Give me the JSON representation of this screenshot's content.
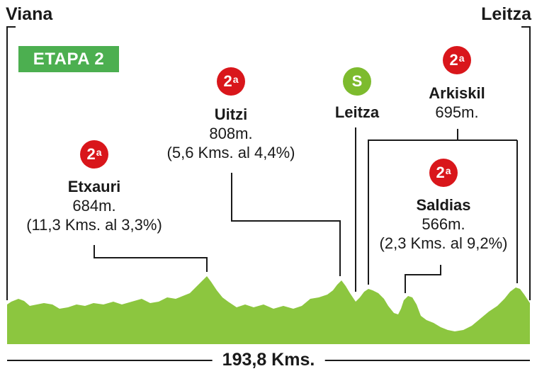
{
  "stage": {
    "label": "ETAPA 2"
  },
  "start": {
    "name": "Viana"
  },
  "finish": {
    "name": "Leitza"
  },
  "total_distance": "193,8 Kms.",
  "colors": {
    "profile_fill": "#8cc63f",
    "category_badge": "#d9161b",
    "sprint_badge": "#7dbb2e",
    "stage_badge": "#4caf50"
  },
  "climbs": [
    {
      "name": "Etxauri",
      "category": "2",
      "category_suffix": "a",
      "altitude": "684m.",
      "detail": "(11,3 Kms. al 3,3%)"
    },
    {
      "name": "Uitzi",
      "category": "2",
      "category_suffix": "a",
      "altitude": "808m.",
      "detail": "(5,6 Kms. al 4,4%)"
    },
    {
      "name": "Arkiskil",
      "category": "2",
      "category_suffix": "a",
      "altitude": "695m.",
      "detail": ""
    },
    {
      "name": "Saldias",
      "category": "2",
      "category_suffix": "a",
      "altitude": "566m.",
      "detail": "(2,3 Kms. al 9,2%)"
    }
  ],
  "sprint": {
    "name": "Leitza",
    "symbol": "S"
  }
}
